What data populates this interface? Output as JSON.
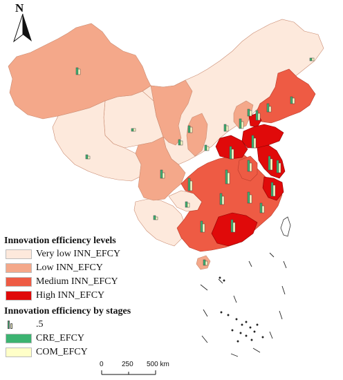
{
  "north_arrow": {
    "label": "N"
  },
  "legend": {
    "levels_title": "Innovation efficiency levels",
    "levels": [
      {
        "label": "Very low INN_EFCY",
        "color": "#fde9dc"
      },
      {
        "label": "Low INN_EFCY",
        "color": "#f4a88a"
      },
      {
        "label": "Medium INN_EFCY",
        "color": "#ee5b44"
      },
      {
        "label": "High INN_EFCY",
        "color": "#e00a0a"
      }
    ],
    "stages_title": "Innovation efficiency by stages",
    "stages": [
      {
        "label": ".5",
        "kind": "bar-symbol"
      },
      {
        "label": "CRE_EFCY",
        "color": "#3cb371"
      },
      {
        "label": "COM_EFCY",
        "color": "#ffffc8"
      }
    ]
  },
  "scale_bar": {
    "ticks": [
      "0",
      "250",
      "500 km"
    ]
  }
}
